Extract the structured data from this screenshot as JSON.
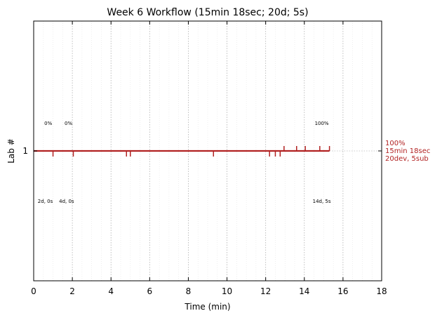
{
  "chart_data": {
    "type": "line",
    "title": "Week 6 Workflow (15min 18sec; 20d; 5s)",
    "xlabel": "Time (min)",
    "ylabel": "Lab #",
    "xlim": [
      0,
      18
    ],
    "ylim": [
      0.5,
      1.5
    ],
    "x_ticks": [
      0,
      2,
      4,
      6,
      8,
      10,
      12,
      14,
      16,
      18
    ],
    "y_ticks": [
      1
    ],
    "grid": "x-minor-dotted",
    "series": [
      {
        "color": "#b22222",
        "segments": [
          [
            0,
            15.3
          ]
        ],
        "y": 1
      }
    ],
    "dev_events_min": [
      1.0,
      2.05,
      4.8,
      5.0,
      9.3,
      12.2,
      12.5,
      12.75
    ],
    "submit_events_min": [
      12.95,
      13.6,
      14.05,
      14.8,
      15.3
    ],
    "annotations_top": [
      {
        "x": 0.75,
        "text": "0%"
      },
      {
        "x": 1.8,
        "text": "0%"
      },
      {
        "x": 14.9,
        "text": "100%"
      }
    ],
    "annotations_bottom": [
      {
        "x": 0.6,
        "text": "2d, 0s"
      },
      {
        "x": 1.7,
        "text": "4d, 0s"
      },
      {
        "x": 14.9,
        "text": "14d, 5s"
      }
    ],
    "right_summary": [
      "100%",
      "15min 18sec",
      "20dev, 5sub"
    ],
    "colors": {
      "line": "#b22222",
      "grid": "#bbbbbb",
      "axis": "#000000"
    }
  }
}
